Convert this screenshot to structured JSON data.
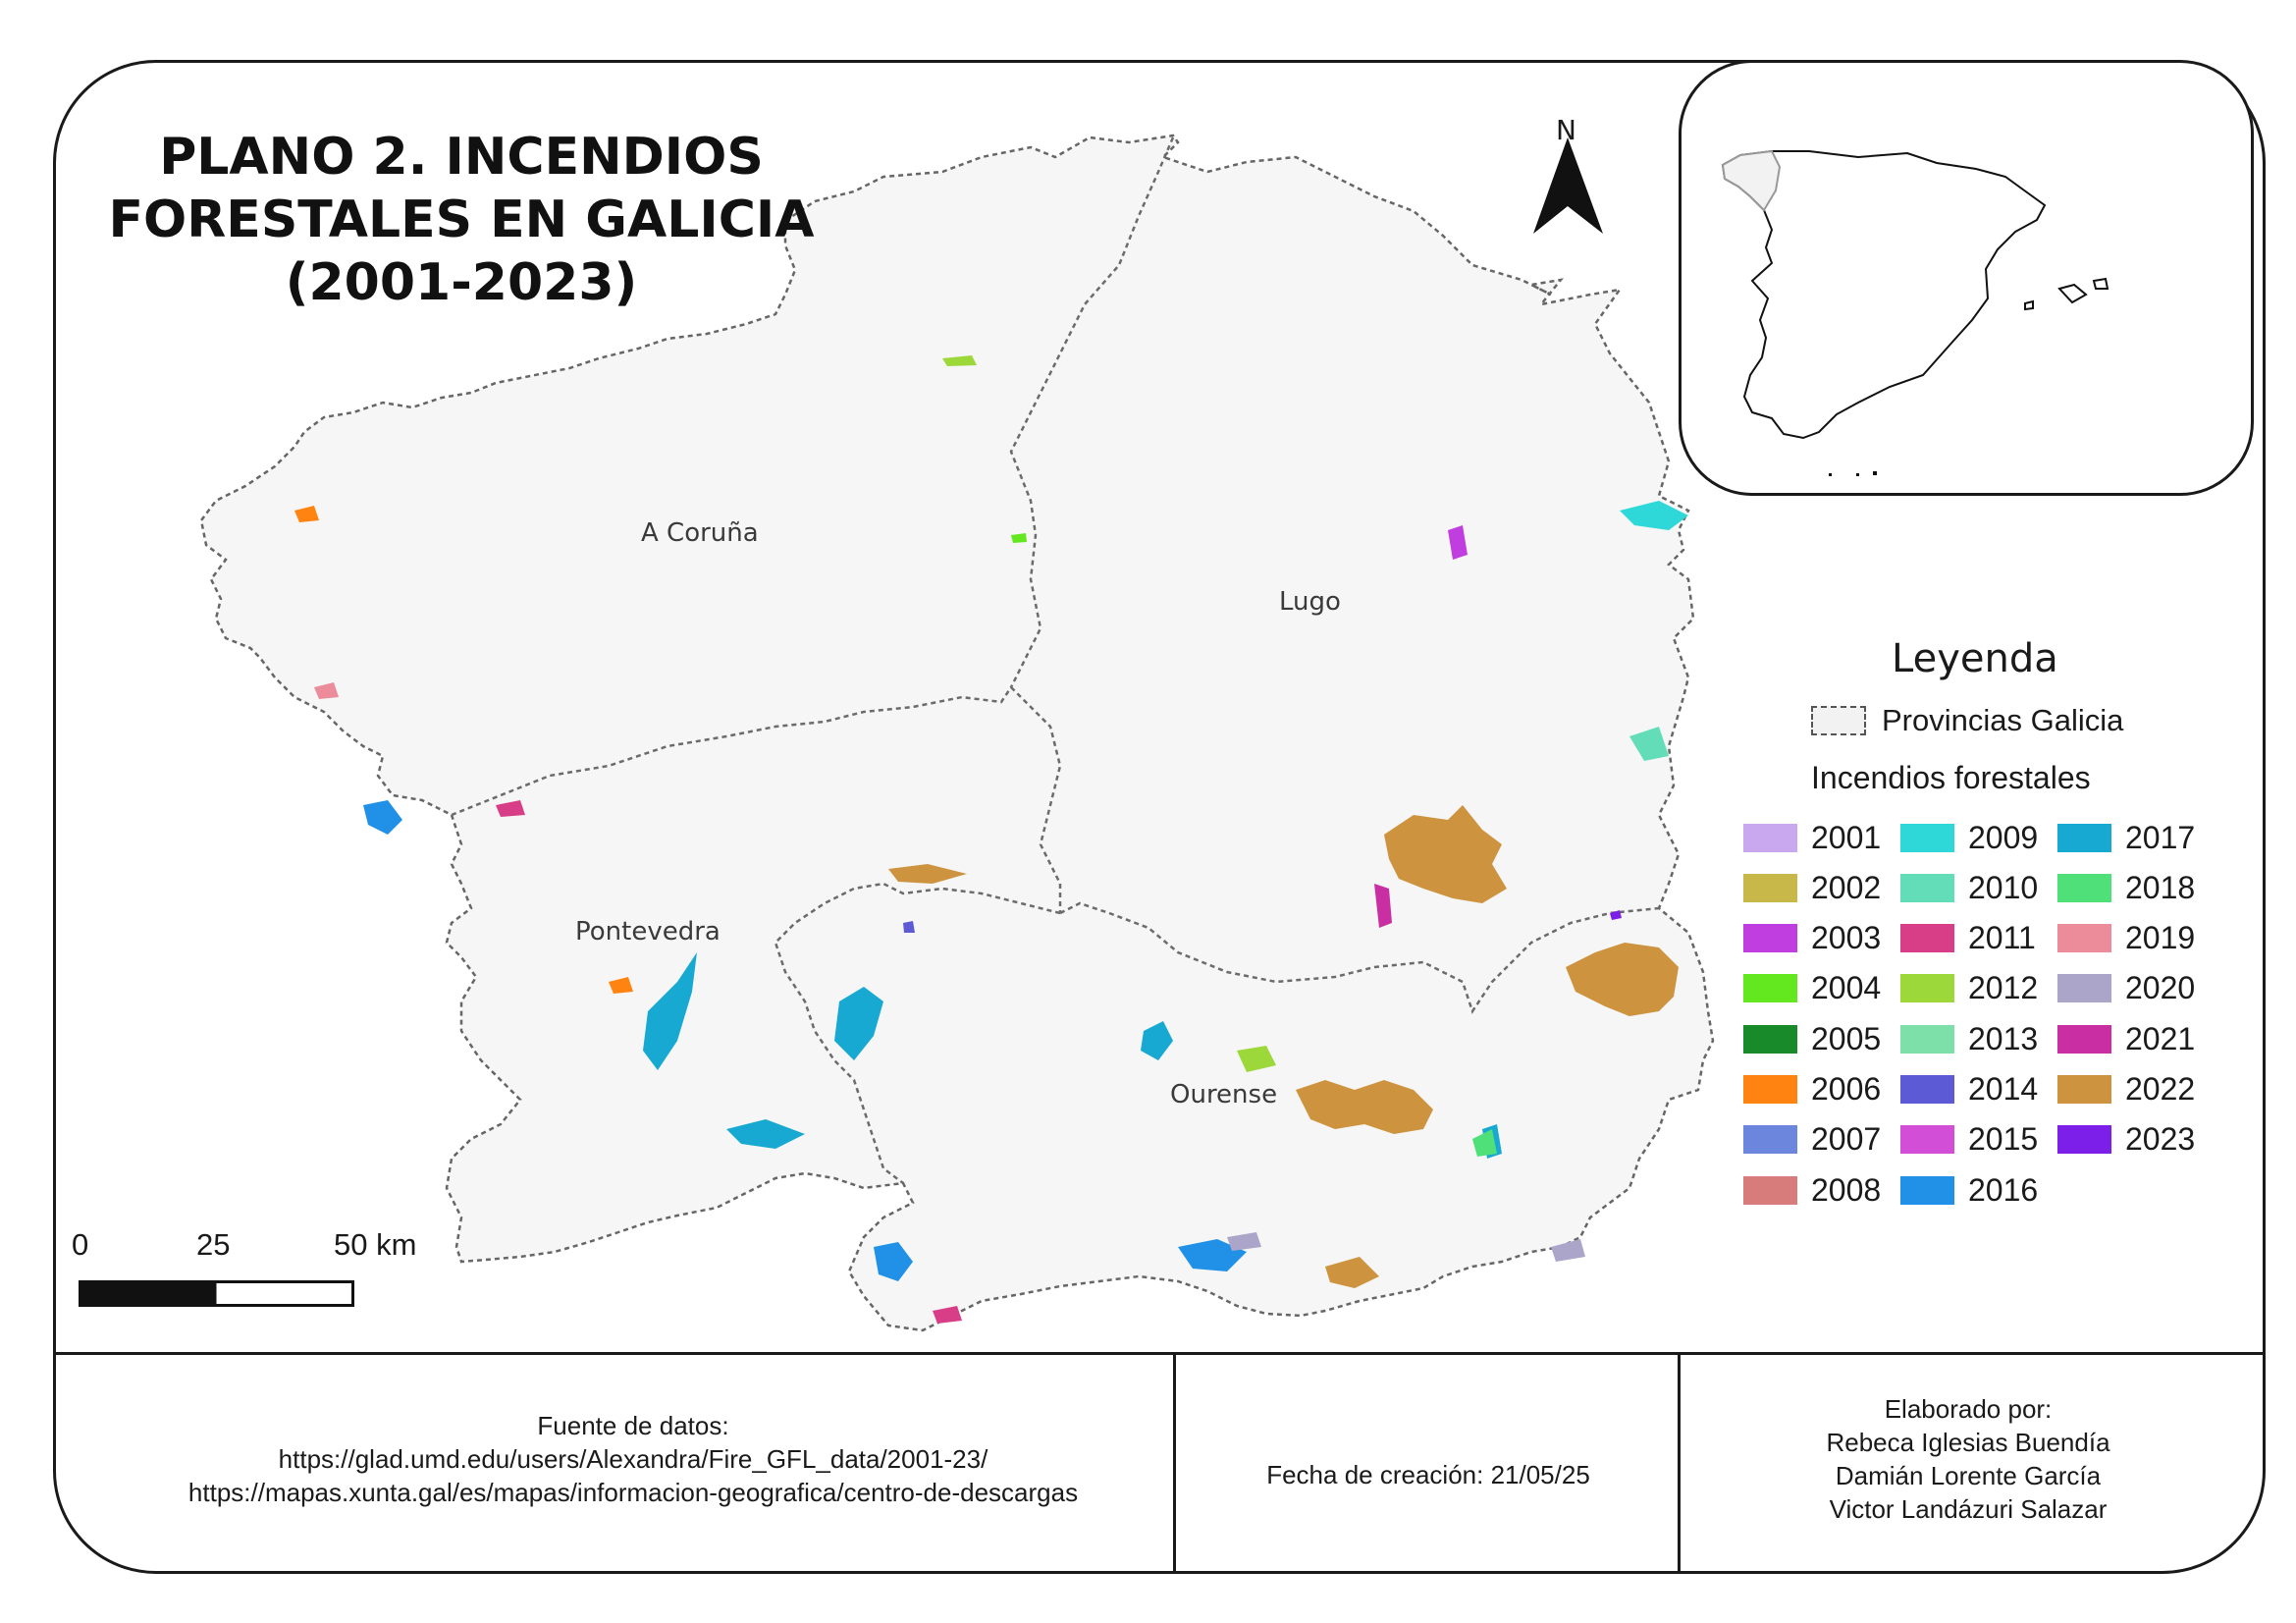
{
  "title": {
    "line1": "PLANO 2. INCENDIOS",
    "line2": "FORESTALES EN GALICIA",
    "line3": "(2001-2023)"
  },
  "north_arrow": {
    "label": "N"
  },
  "provinces": [
    {
      "name": "A Coruña"
    },
    {
      "name": "Lugo"
    },
    {
      "name": "Pontevedra"
    },
    {
      "name": "Ourense"
    }
  ],
  "legend": {
    "title": "Leyenda",
    "boundary_label": "Provincias Galicia",
    "subtitle": "Incendios forestales",
    "years": [
      {
        "year": "2001",
        "color": "#c9a8ef"
      },
      {
        "year": "2002",
        "color": "#c8b84a"
      },
      {
        "year": "2003",
        "color": "#c03ee0"
      },
      {
        "year": "2004",
        "color": "#63e81f"
      },
      {
        "year": "2005",
        "color": "#188a29"
      },
      {
        "year": "2006",
        "color": "#ff8311"
      },
      {
        "year": "2007",
        "color": "#6b86dc"
      },
      {
        "year": "2008",
        "color": "#d87b7b"
      },
      {
        "year": "2009",
        "color": "#2ed8d8"
      },
      {
        "year": "2010",
        "color": "#62ddb8"
      },
      {
        "year": "2011",
        "color": "#d83e87"
      },
      {
        "year": "2012",
        "color": "#9cd83a"
      },
      {
        "year": "2013",
        "color": "#7ee0a9"
      },
      {
        "year": "2014",
        "color": "#5d5ad6"
      },
      {
        "year": "2015",
        "color": "#d34ed6"
      },
      {
        "year": "2016",
        "color": "#2191e8"
      },
      {
        "year": "2017",
        "color": "#17a9d1"
      },
      {
        "year": "2018",
        "color": "#4fe07a"
      },
      {
        "year": "2019",
        "color": "#ec8b9a"
      },
      {
        "year": "2020",
        "color": "#aba6c9"
      },
      {
        "year": "2021",
        "color": "#c92fa3"
      },
      {
        "year": "2022",
        "color": "#cd933e"
      },
      {
        "year": "2023",
        "color": "#7c1fe8"
      }
    ]
  },
  "scale": {
    "tick0": "0",
    "tick1": "25",
    "tick2": "50 km"
  },
  "footer": {
    "source_label": "Fuente de datos:",
    "source_url1": "https://glad.umd.edu/users/Alexandra/Fire_GFL_data/2001-23/",
    "source_url2": "https://mapas.xunta.gal/es/mapas/informacion-geografica/centro-de-descargas",
    "date_text": "Fecha de creación: 21/05/25",
    "author_label": "Elaborado por:",
    "author1": "Rebeca Iglesias Buendía",
    "author2": "Damián Lorente García",
    "author3": "Victor Landázuri Salazar"
  }
}
